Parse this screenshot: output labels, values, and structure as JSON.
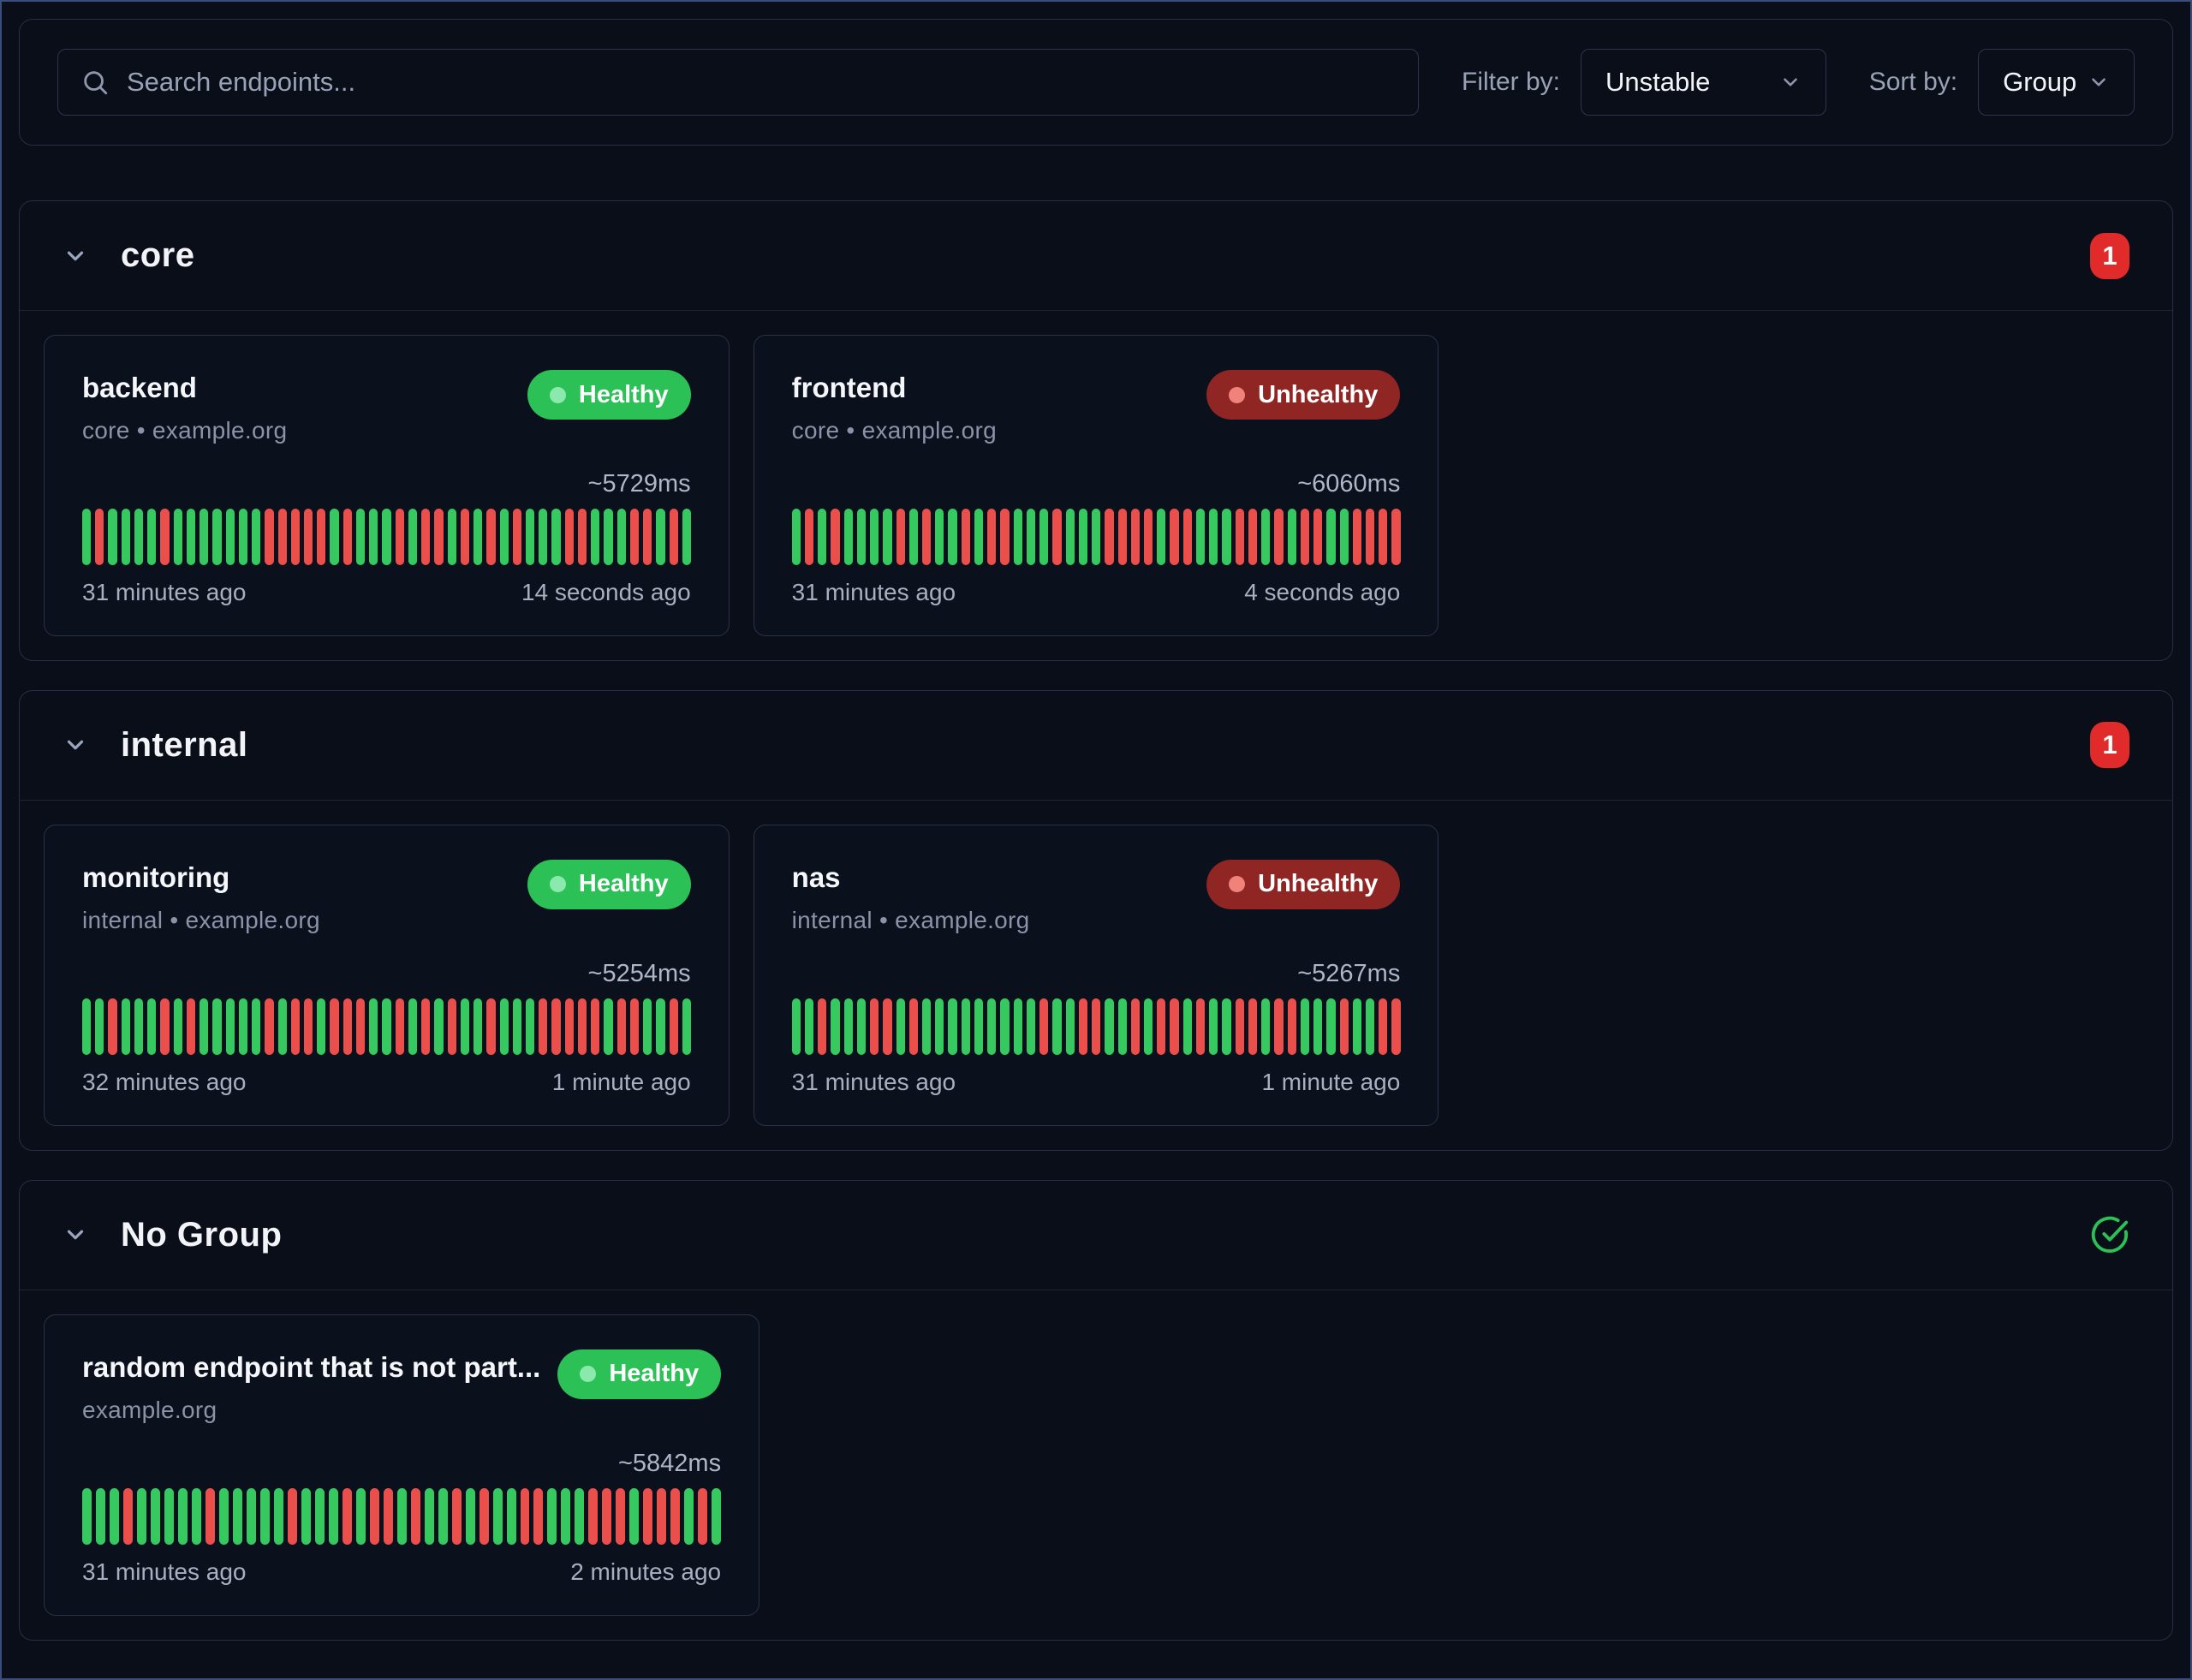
{
  "toolbar": {
    "search_placeholder": "Search endpoints...",
    "filter_label": "Filter by:",
    "filter_value": "Unstable",
    "sort_label": "Sort by:",
    "sort_value": "Group"
  },
  "colors": {
    "background": "#0a0e18",
    "panel_border": "#262f45",
    "bar_up": "#35c95f",
    "bar_down": "#ea4f4b",
    "healthy_badge": "#2bc156",
    "unhealthy_badge": "#8f2623",
    "count_badge": "#e12a2a",
    "muted_text": "#8a93a7"
  },
  "groups": [
    {
      "name": "core",
      "badge_type": "count",
      "badge": "1",
      "endpoints": [
        {
          "name": "backend",
          "status": "Healthy",
          "meta": [
            "core",
            "example.org"
          ],
          "response_time": "~5729ms",
          "from": "31 minutes ago",
          "to": "14 seconds ago",
          "history": [
            "u",
            "d",
            "u",
            "u",
            "u",
            "u",
            "d",
            "u",
            "u",
            "u",
            "u",
            "u",
            "u",
            "u",
            "d",
            "d",
            "d",
            "d",
            "d",
            "u",
            "d",
            "u",
            "u",
            "u",
            "d",
            "u",
            "d",
            "d",
            "u",
            "d",
            "u",
            "d",
            "u",
            "d",
            "u",
            "u",
            "u",
            "d",
            "d",
            "u",
            "u",
            "u",
            "d",
            "d",
            "u",
            "d",
            "u"
          ]
        },
        {
          "name": "frontend",
          "status": "Unhealthy",
          "meta": [
            "core",
            "example.org"
          ],
          "response_time": "~6060ms",
          "from": "31 minutes ago",
          "to": "4 seconds ago",
          "history": [
            "u",
            "d",
            "u",
            "d",
            "u",
            "u",
            "u",
            "u",
            "d",
            "u",
            "d",
            "u",
            "u",
            "d",
            "u",
            "d",
            "d",
            "u",
            "u",
            "u",
            "d",
            "u",
            "u",
            "u",
            "d",
            "d",
            "d",
            "d",
            "u",
            "d",
            "d",
            "u",
            "u",
            "u",
            "d",
            "d",
            "u",
            "d",
            "u",
            "d",
            "d",
            "u",
            "u",
            "d",
            "d",
            "d",
            "d"
          ]
        }
      ]
    },
    {
      "name": "internal",
      "badge_type": "count",
      "badge": "1",
      "endpoints": [
        {
          "name": "monitoring",
          "status": "Healthy",
          "meta": [
            "internal",
            "example.org"
          ],
          "response_time": "~5254ms",
          "from": "32 minutes ago",
          "to": "1 minute ago",
          "history": [
            "u",
            "u",
            "d",
            "u",
            "u",
            "u",
            "d",
            "u",
            "d",
            "u",
            "u",
            "u",
            "u",
            "u",
            "d",
            "u",
            "d",
            "d",
            "u",
            "d",
            "d",
            "d",
            "u",
            "u",
            "d",
            "u",
            "d",
            "u",
            "d",
            "u",
            "u",
            "d",
            "u",
            "u",
            "u",
            "d",
            "d",
            "d",
            "d",
            "d",
            "u",
            "d",
            "d",
            "u",
            "u",
            "d",
            "u"
          ]
        },
        {
          "name": "nas",
          "status": "Unhealthy",
          "meta": [
            "internal",
            "example.org"
          ],
          "response_time": "~5267ms",
          "from": "31 minutes ago",
          "to": "1 minute ago",
          "history": [
            "u",
            "u",
            "d",
            "u",
            "u",
            "u",
            "d",
            "d",
            "u",
            "d",
            "u",
            "u",
            "u",
            "u",
            "u",
            "u",
            "u",
            "u",
            "u",
            "d",
            "u",
            "u",
            "d",
            "d",
            "u",
            "u",
            "d",
            "u",
            "d",
            "d",
            "u",
            "d",
            "u",
            "u",
            "d",
            "d",
            "u",
            "d",
            "d",
            "u",
            "u",
            "u",
            "d",
            "u",
            "u",
            "d",
            "d"
          ]
        }
      ]
    },
    {
      "name": "No Group",
      "badge_type": "ok",
      "badge": "",
      "endpoints": [
        {
          "name": "random endpoint that is not part...",
          "status": "Healthy",
          "meta": [
            "example.org"
          ],
          "response_time": "~5842ms",
          "from": "31 minutes ago",
          "to": "2 minutes ago",
          "history": [
            "u",
            "u",
            "u",
            "d",
            "u",
            "u",
            "u",
            "u",
            "u",
            "d",
            "u",
            "u",
            "u",
            "u",
            "u",
            "d",
            "u",
            "u",
            "u",
            "d",
            "u",
            "d",
            "d",
            "u",
            "d",
            "u",
            "u",
            "d",
            "u",
            "d",
            "u",
            "u",
            "d",
            "d",
            "u",
            "u",
            "u",
            "d",
            "d",
            "d",
            "u",
            "d",
            "d",
            "d",
            "u",
            "d",
            "u"
          ]
        }
      ]
    }
  ]
}
